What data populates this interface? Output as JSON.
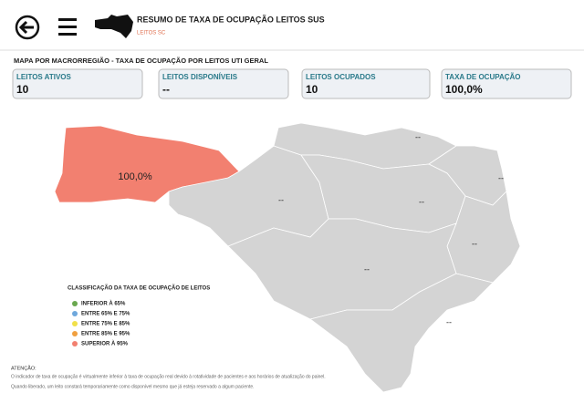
{
  "header": {
    "title": "RESUMO DE TAXA DE OCUPAÇÃO LEITOS SUS",
    "subtitle": "LEITOS SC"
  },
  "map": {
    "title": "MAPA POR MACRORREGIÃO - TAXA DE OCUPAÇÃO POR LEITOS UTI GERAL",
    "regions": [
      {
        "label": "100,0%",
        "color": "#f28070"
      },
      {
        "label": "--",
        "color": "#d4d4d4"
      },
      {
        "label": "--",
        "color": "#d4d4d4"
      },
      {
        "label": "--",
        "color": "#d4d4d4"
      },
      {
        "label": "--",
        "color": "#d4d4d4"
      },
      {
        "label": "--",
        "color": "#d4d4d4"
      },
      {
        "label": "--",
        "color": "#d4d4d4"
      },
      {
        "label": "--",
        "color": "#d4d4d4"
      }
    ]
  },
  "cards": [
    {
      "label": "LEITOS ATIVOS",
      "value": "10"
    },
    {
      "label": "LEITOS DISPONÍVEIS",
      "value": "--"
    },
    {
      "label": "LEITOS OCUPADOS",
      "value": "10"
    },
    {
      "label": "TAXA DE OCUPAÇÃO",
      "value": "100,0%"
    }
  ],
  "legend": {
    "title": "CLASSIFICAÇÃO DA TAXA DE OCUPAÇÃO DE LEITOS",
    "items": [
      {
        "label": "INFERIOR À 65%",
        "color": "#6aa84f"
      },
      {
        "label": "ENTRE 65% E 75%",
        "color": "#6fa8dc"
      },
      {
        "label": "ENTRE 75% E 85%",
        "color": "#f1e04a"
      },
      {
        "label": "ENTRE 85% E 95%",
        "color": "#f0a040"
      },
      {
        "label": "SUPERIOR À 95%",
        "color": "#f28070"
      }
    ]
  },
  "notice": {
    "title": "ATENÇÃO:",
    "lines": [
      "O indicador de taxa de ocupação é virtualmente inferior à taxa de ocupação real devido à rotatividade de pacientes e aos horários de atualização do painel.",
      "Quando liberado, um leito constará temporariamente como disponível mesmo que já esteja reservado a algum paciente."
    ]
  }
}
